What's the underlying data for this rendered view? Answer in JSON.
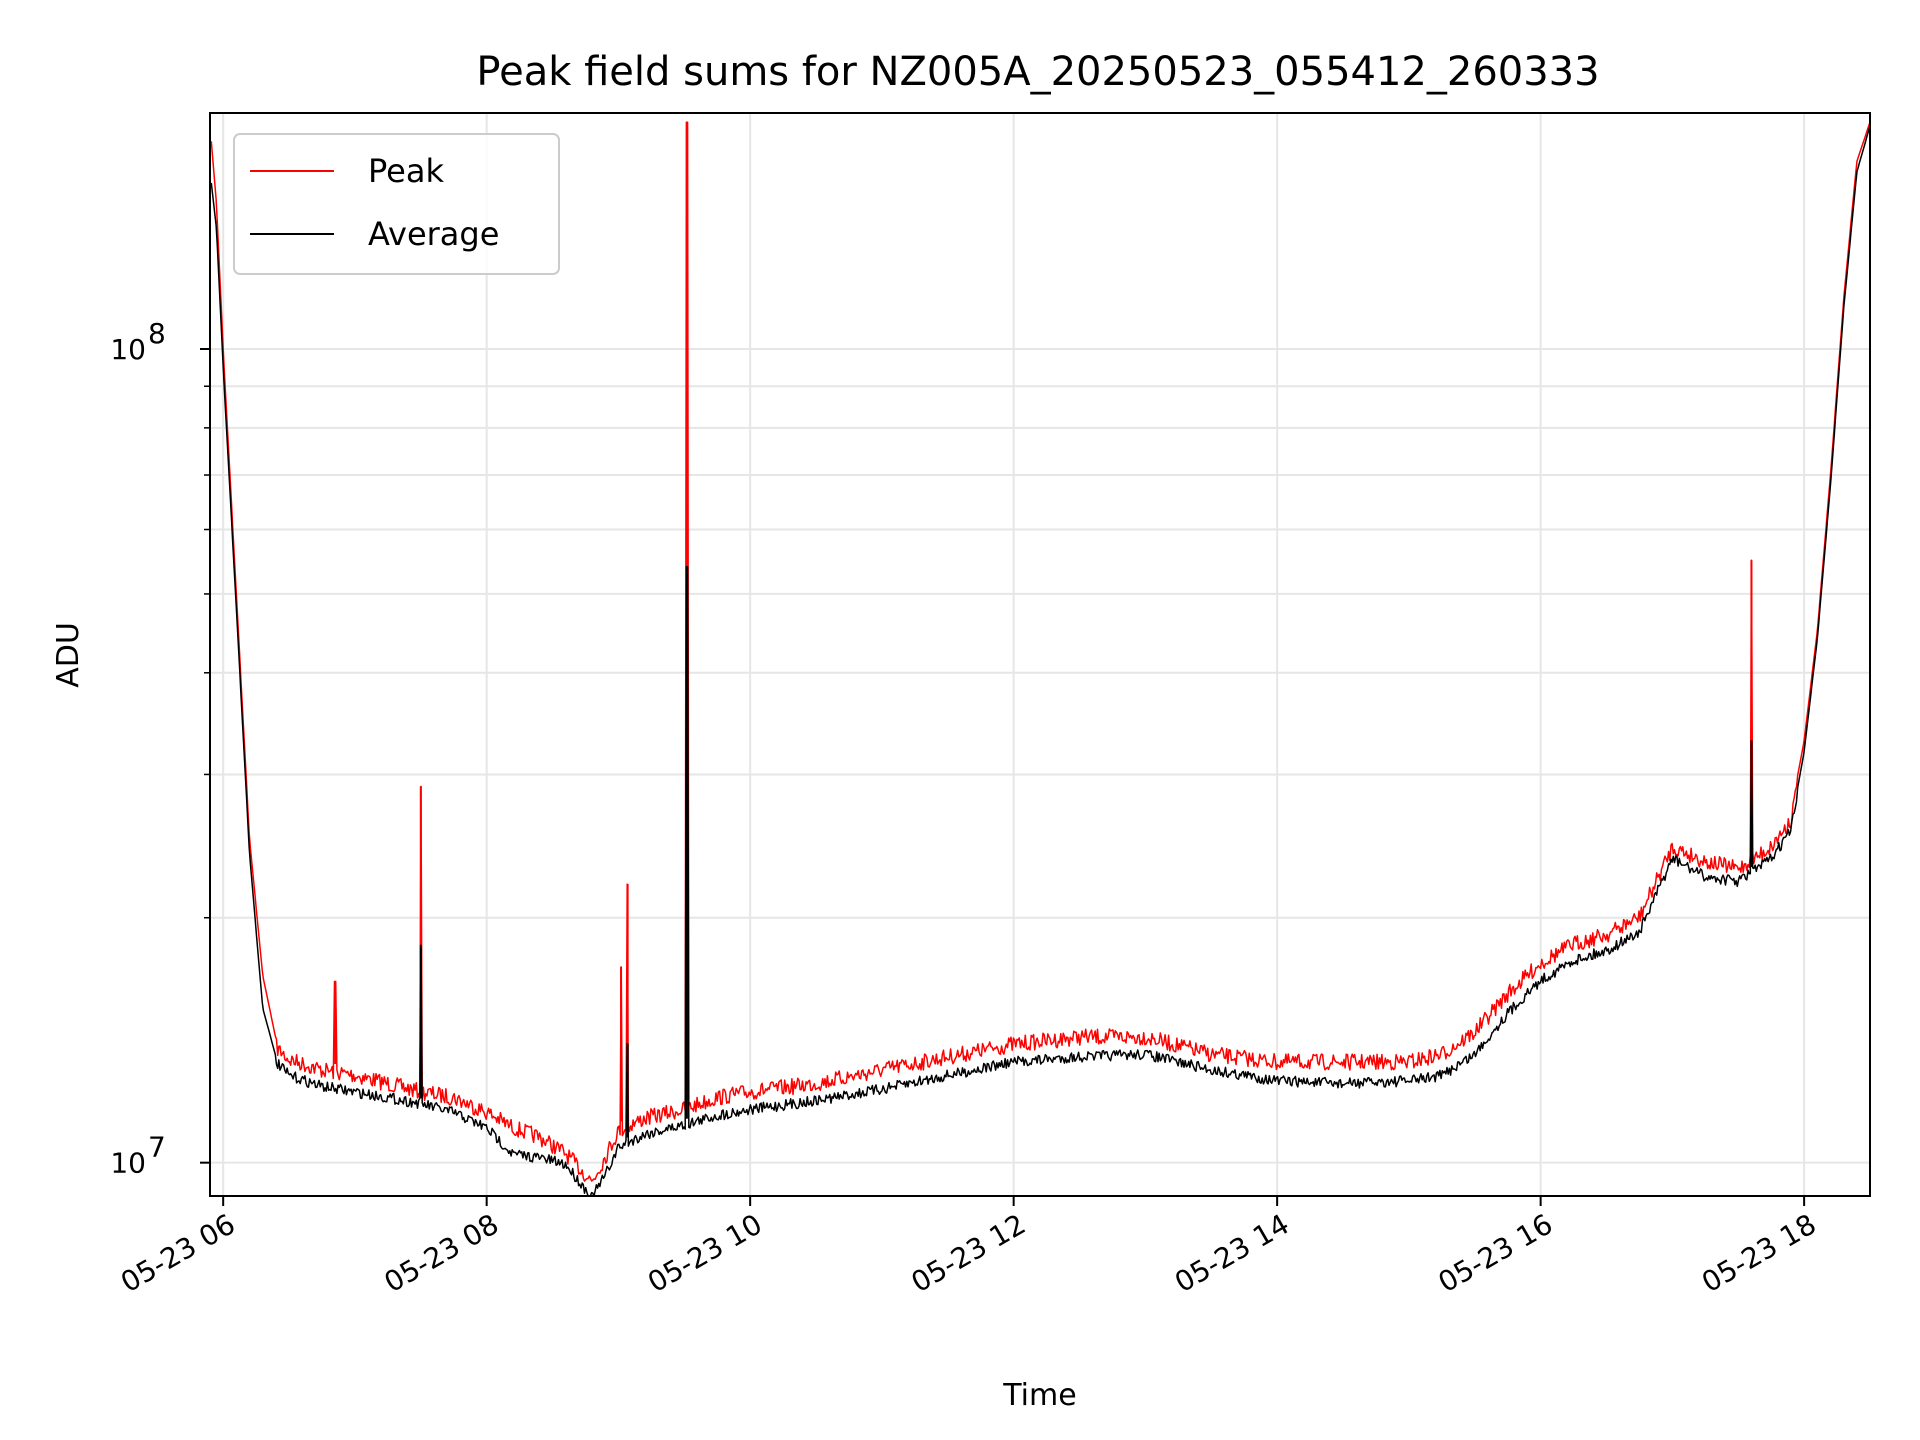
{
  "chart_data": {
    "type": "line",
    "title": "Peak field sums for NZ005A_20250523_055412_260333",
    "xlabel": "Time",
    "ylabel": "ADU",
    "yscale": "log",
    "ylim": [
      9100000,
      195000000
    ],
    "xlim": [
      5.9,
      18.5
    ],
    "grid": true,
    "x_unit": "hours since 2025-05-23 00:00",
    "x_ticks": [
      {
        "value": 6,
        "label": "05-23 06"
      },
      {
        "value": 8,
        "label": "05-23 08"
      },
      {
        "value": 10,
        "label": "05-23 10"
      },
      {
        "value": 12,
        "label": "05-23 12"
      },
      {
        "value": 14,
        "label": "05-23 14"
      },
      {
        "value": 16,
        "label": "05-23 16"
      },
      {
        "value": 18,
        "label": "05-23 18"
      }
    ],
    "y_ticks": [
      {
        "value": 10000000,
        "base": "10",
        "exp": "7"
      },
      {
        "value": 100000000,
        "base": "10",
        "exp": "8"
      }
    ],
    "legend": {
      "position": "top-left",
      "entries": [
        {
          "label": "Peak",
          "color": "#ff0000"
        },
        {
          "label": "Average",
          "color": "#000000"
        }
      ]
    },
    "series": [
      {
        "name": "Peak",
        "color": "#ff0000",
        "x": [
          5.91,
          5.95,
          6.0,
          6.1,
          6.2,
          6.3,
          6.4,
          6.5,
          6.75,
          7.0,
          7.25,
          7.5,
          7.75,
          8.0,
          8.2,
          8.4,
          8.6,
          8.8,
          8.9,
          9.0,
          9.2,
          9.5,
          9.75,
          10.0,
          10.5,
          11.0,
          11.5,
          12.0,
          12.5,
          13.0,
          13.5,
          14.0,
          14.5,
          15.0,
          15.25,
          15.5,
          15.75,
          16.0,
          16.25,
          16.5,
          16.75,
          17.0,
          17.25,
          17.5,
          17.75,
          17.9,
          18.0,
          18.1,
          18.2,
          18.3,
          18.4,
          18.5
        ],
        "values": [
          180000000,
          150000000,
          100000000,
          50000000,
          25000000,
          17000000,
          14200000,
          13700000,
          13300000,
          13100000,
          12800000,
          12500000,
          12300000,
          11800000,
          11300000,
          11000000,
          10500000,
          9700000,
          10400000,
          11200000,
          11600000,
          11900000,
          12300000,
          12500000,
          12800000,
          13300000,
          13800000,
          14300000,
          14600000,
          14600000,
          13900000,
          13600000,
          13600000,
          13600000,
          13900000,
          14800000,
          16500000,
          18000000,
          19000000,
          19500000,
          20500000,
          25000000,
          24000000,
          23500000,
          25000000,
          27000000,
          33000000,
          45000000,
          70000000,
          115000000,
          170000000,
          190000000
        ],
        "spikes": [
          {
            "x": 6.85,
            "value": 16700000
          },
          {
            "x": 7.5,
            "value": 29000000
          },
          {
            "x": 9.02,
            "value": 17400000
          },
          {
            "x": 9.07,
            "value": 22000000
          },
          {
            "x": 9.52,
            "value": 190000000
          },
          {
            "x": 17.6,
            "value": 55000000
          }
        ]
      },
      {
        "name": "Average",
        "color": "#000000",
        "x": [
          5.91,
          5.95,
          6.0,
          6.1,
          6.2,
          6.3,
          6.4,
          6.5,
          6.75,
          7.0,
          7.25,
          7.5,
          7.75,
          8.0,
          8.2,
          8.4,
          8.6,
          8.8,
          8.9,
          9.0,
          9.2,
          9.5,
          9.75,
          10.0,
          10.5,
          11.0,
          11.5,
          12.0,
          12.5,
          13.0,
          13.5,
          14.0,
          14.5,
          15.0,
          15.25,
          15.5,
          15.75,
          16.0,
          16.25,
          16.5,
          16.75,
          17.0,
          17.25,
          17.5,
          17.75,
          17.9,
          18.0,
          18.1,
          18.2,
          18.3,
          18.4,
          18.5
        ],
        "values": [
          160000000,
          140000000,
          95000000,
          48000000,
          24000000,
          15500000,
          13500000,
          13000000,
          12600000,
          12400000,
          12200000,
          12000000,
          11700000,
          11200000,
          10400000,
          10300000,
          10100000,
          9200000,
          9800000,
          10600000,
          11000000,
          11300000,
          11600000,
          11800000,
          12100000,
          12500000,
          13000000,
          13500000,
          13700000,
          13800000,
          13200000,
          12800000,
          12700000,
          12800000,
          13000000,
          13800000,
          15500000,
          17000000,
          18000000,
          18500000,
          19500000,
          24000000,
          22800000,
          22500000,
          24000000,
          26000000,
          32000000,
          44000000,
          68000000,
          112000000,
          165000000,
          188000000
        ],
        "spikes": [
          {
            "x": 7.5,
            "value": 18500000
          },
          {
            "x": 9.07,
            "value": 14000000
          },
          {
            "x": 9.52,
            "value": 54000000
          },
          {
            "x": 17.6,
            "value": 33000000
          }
        ]
      }
    ]
  }
}
